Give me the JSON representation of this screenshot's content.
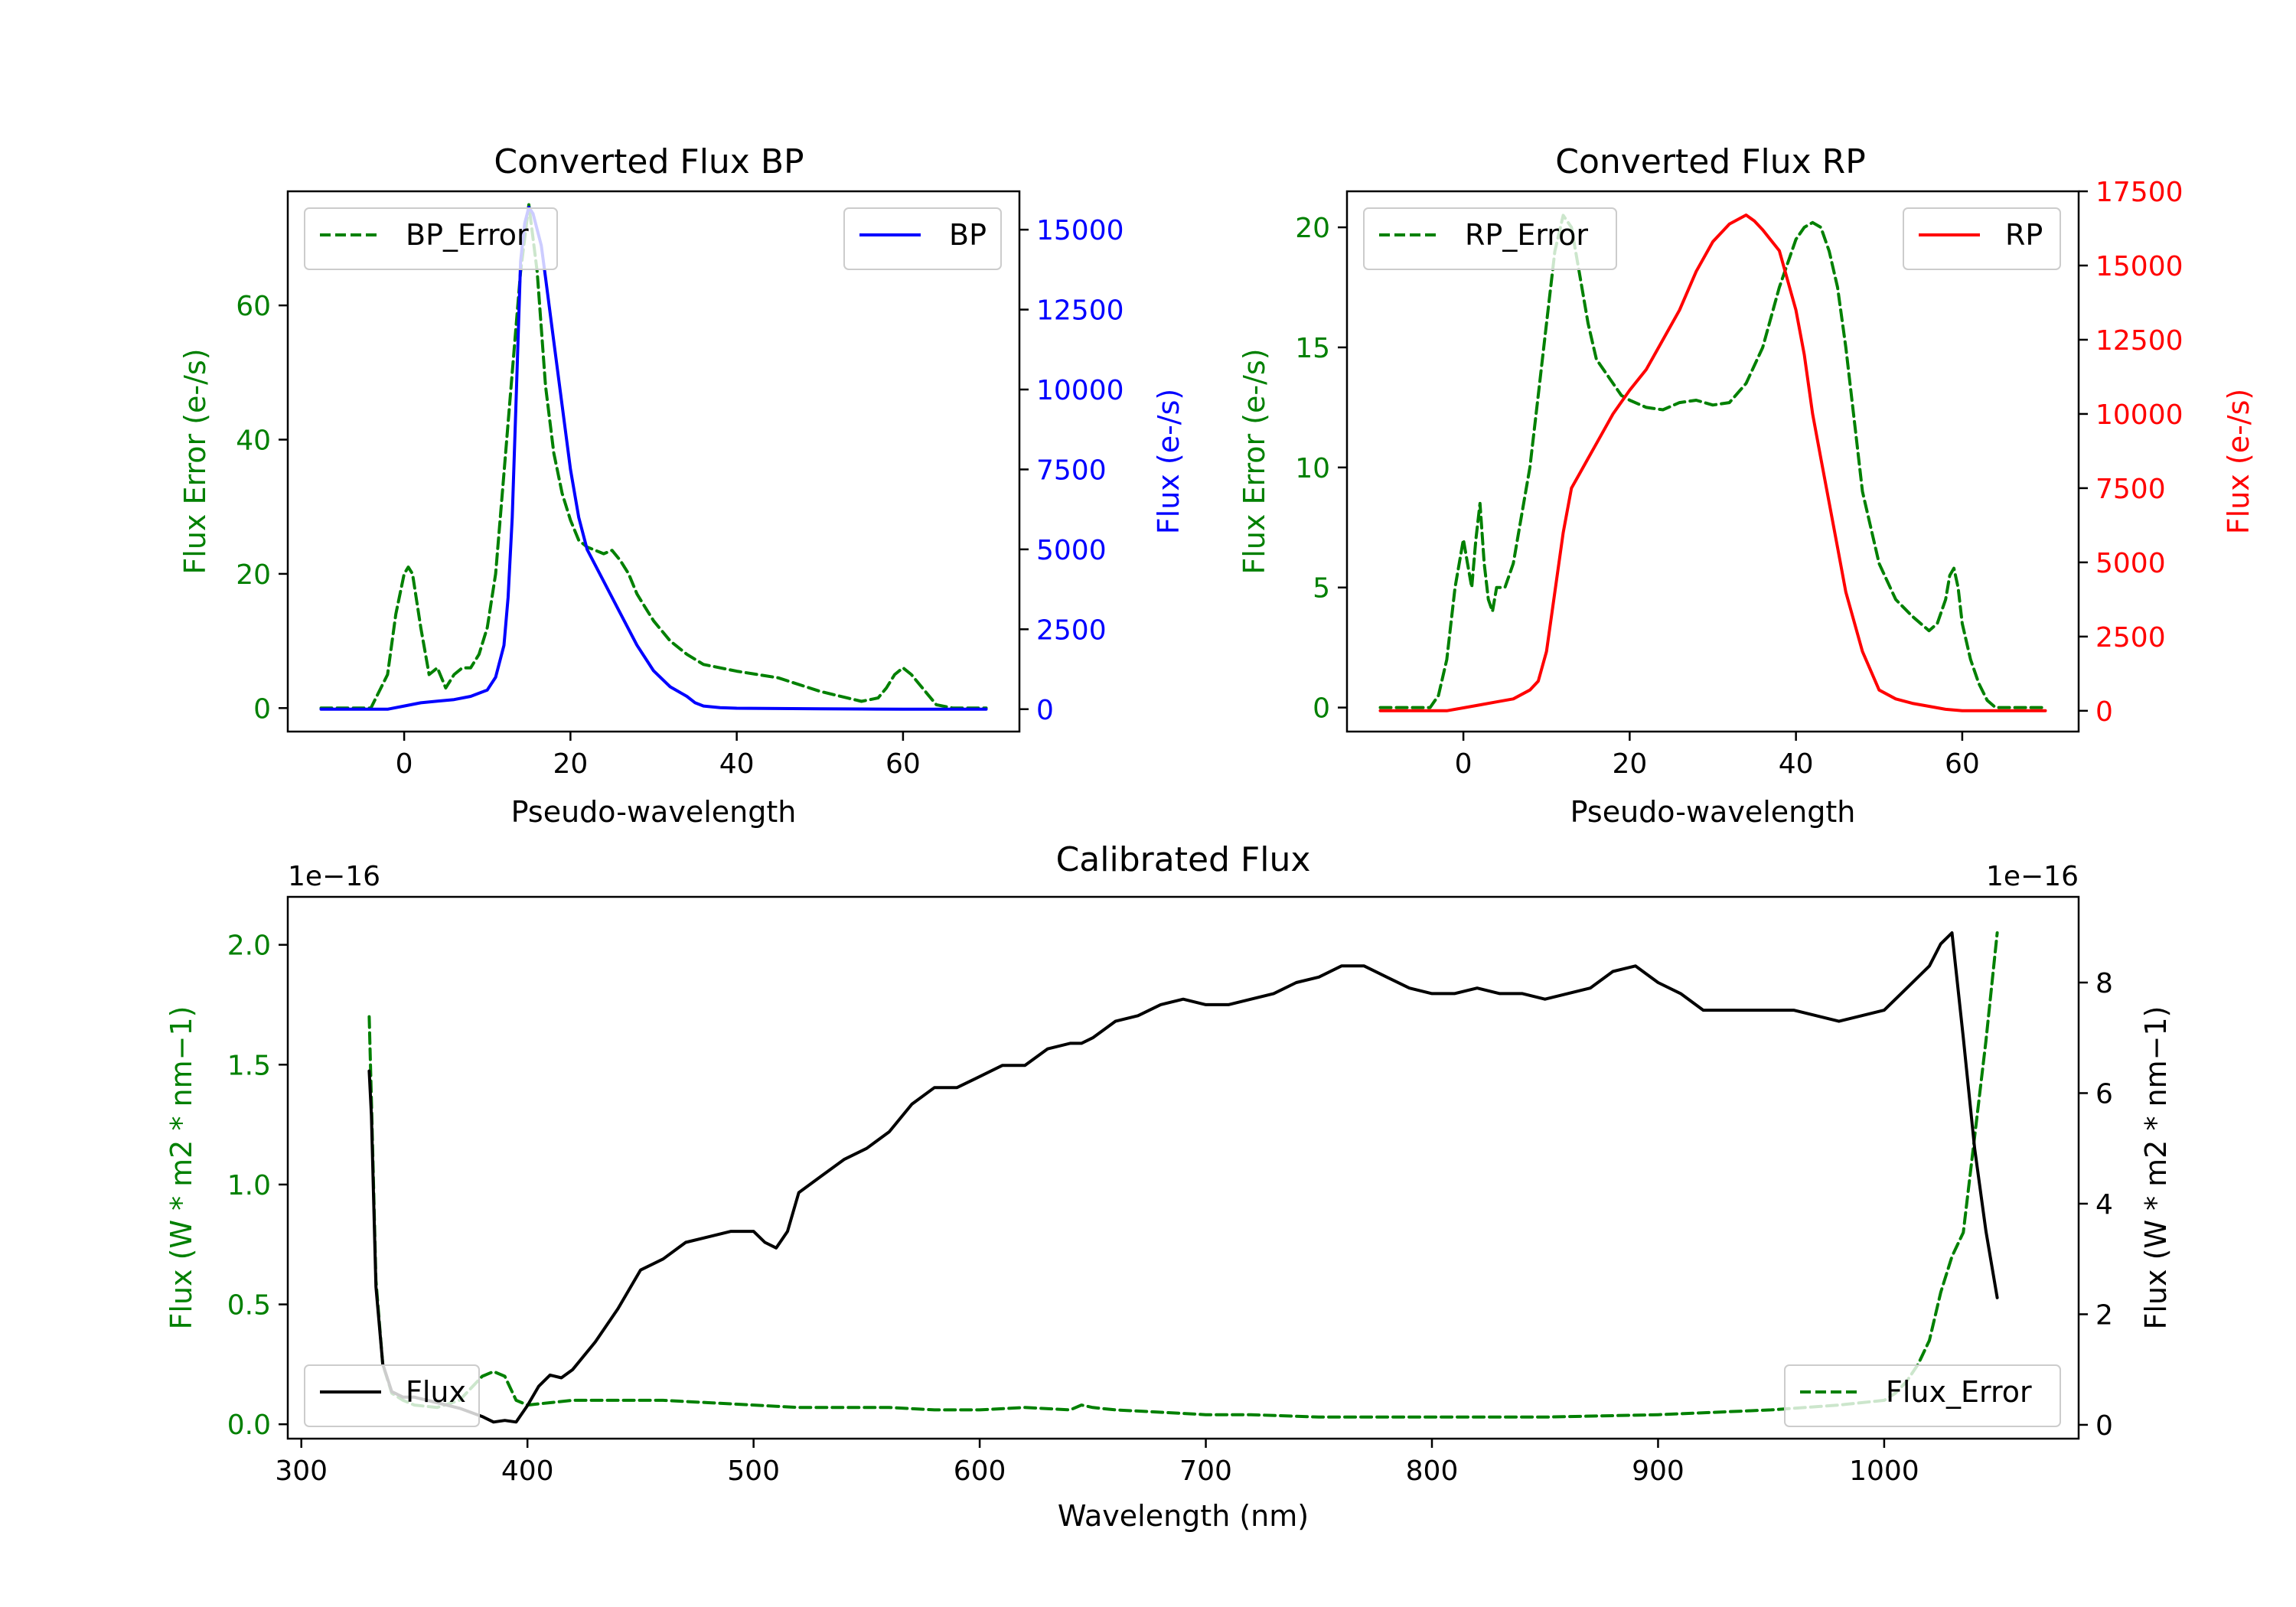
{
  "chart_data": [
    {
      "id": "bp",
      "type": "line",
      "title": "Converted Flux BP",
      "xlabel": "Pseudo-wavelength",
      "xlim": [
        -14,
        74
      ],
      "xticks": [
        0,
        20,
        40,
        60
      ],
      "left_axis": {
        "label": "Flux Error (e-/s)",
        "color": "#008000",
        "ylim": [
          -3.5,
          77
        ],
        "ticks": [
          0,
          20,
          40,
          60
        ],
        "tick_labels": [
          "0",
          "20",
          "40",
          "60"
        ]
      },
      "right_axis": {
        "label": "Flux (e-/s)",
        "color": "#0000ff",
        "ylim": [
          -700,
          16200
        ],
        "ticks": [
          0,
          2500,
          5000,
          7500,
          10000,
          12500,
          15000
        ],
        "tick_labels": [
          "0",
          "2500",
          "5000",
          "7500",
          "10000",
          "12500",
          "15000"
        ]
      },
      "series": [
        {
          "name": "BP_Error",
          "axis": "left",
          "color": "#008000",
          "style": "dashed",
          "x": [
            -10,
            -4,
            -2,
            -1,
            0,
            0.5,
            1,
            2,
            3,
            4,
            5,
            6,
            7,
            8,
            9,
            10,
            11,
            12,
            13,
            14,
            15,
            16,
            17,
            18,
            19,
            20,
            21,
            22,
            23,
            24,
            25,
            26,
            27,
            28,
            29,
            30,
            32,
            34,
            36,
            38,
            40,
            45,
            50,
            55,
            57,
            58,
            59,
            60,
            61,
            62,
            63,
            64,
            66,
            70
          ],
          "y": [
            0,
            0,
            5,
            14,
            20,
            21,
            20,
            12,
            5,
            6,
            3,
            5,
            6,
            6,
            8,
            12,
            20,
            35,
            50,
            65,
            75,
            65,
            48,
            38,
            32,
            28,
            25,
            24,
            23.5,
            23,
            23.5,
            22,
            20,
            17,
            15,
            13,
            10,
            8,
            6.5,
            6,
            5.5,
            4.5,
            2.5,
            1,
            1.5,
            3,
            5,
            6,
            5,
            3.5,
            2,
            0.5,
            0,
            0
          ]
        },
        {
          "name": "BP",
          "axis": "right",
          "color": "#0000ff",
          "style": "solid",
          "x": [
            -10,
            -2,
            0,
            2,
            4,
            6,
            8,
            10,
            11,
            12,
            12.5,
            13,
            13.5,
            14,
            14.5,
            15,
            15.5,
            16,
            16.5,
            17,
            18,
            19,
            20,
            21,
            22,
            24,
            26,
            28,
            30,
            32,
            34,
            35,
            36,
            38,
            40,
            45,
            50,
            55,
            60,
            65,
            70
          ],
          "y": [
            0,
            0,
            100,
            200,
            250,
            300,
            400,
            600,
            1000,
            2000,
            3500,
            6000,
            10000,
            14000,
            15200,
            15700,
            15500,
            15000,
            14500,
            13500,
            11500,
            9500,
            7500,
            6000,
            5000,
            4000,
            3000,
            2000,
            1200,
            700,
            400,
            200,
            100,
            50,
            30,
            20,
            10,
            5,
            0,
            0,
            0
          ]
        }
      ],
      "legend": [
        {
          "label": "BP_Error",
          "loc": "upper-left"
        },
        {
          "label": "BP",
          "loc": "upper-right"
        }
      ]
    },
    {
      "id": "rp",
      "type": "line",
      "title": "Converted Flux RP",
      "xlabel": "Pseudo-wavelength",
      "xlim": [
        -14,
        74
      ],
      "xticks": [
        0,
        20,
        40,
        60
      ],
      "left_axis": {
        "label": "Flux Error (e-/s)",
        "color": "#008000",
        "ylim": [
          -1,
          21.5
        ],
        "ticks": [
          0,
          5,
          10,
          15,
          20
        ],
        "tick_labels": [
          "0",
          "5",
          "10",
          "15",
          "20"
        ]
      },
      "right_axis": {
        "label": "Flux (e-/s)",
        "color": "#ff0000",
        "ylim": [
          -700,
          17500
        ],
        "ticks": [
          0,
          2500,
          5000,
          7500,
          10000,
          12500,
          15000,
          17500
        ],
        "tick_labels": [
          "0",
          "2500",
          "5000",
          "7500",
          "10000",
          "12500",
          "15000",
          "17500"
        ]
      },
      "series": [
        {
          "name": "RP_Error",
          "axis": "left",
          "color": "#008000",
          "style": "dashed",
          "x": [
            -10,
            -4,
            -3,
            -2,
            -1,
            0,
            0.5,
            1,
            1.5,
            2,
            2.5,
            3,
            3.5,
            4,
            5,
            6,
            7,
            8,
            9,
            10,
            11,
            12,
            13,
            14,
            15,
            16,
            17,
            18,
            19,
            20,
            22,
            24,
            26,
            28,
            30,
            32,
            34,
            36,
            38,
            40,
            41,
            42,
            43,
            44,
            45,
            46,
            47,
            48,
            50,
            52,
            54,
            55,
            56,
            57,
            58,
            58.5,
            59,
            59.5,
            60,
            61,
            62,
            63,
            64,
            65,
            70
          ],
          "y": [
            0,
            0,
            0.5,
            2,
            5,
            7,
            6,
            5,
            7,
            8.5,
            6,
            4.5,
            4,
            5,
            5,
            6,
            8,
            10,
            13,
            16,
            19,
            20.5,
            20,
            18,
            16,
            14.5,
            14,
            13.5,
            13,
            12.8,
            12.5,
            12.4,
            12.7,
            12.8,
            12.6,
            12.7,
            13.5,
            15,
            17.5,
            19.5,
            20,
            20.2,
            20,
            19,
            17.5,
            15,
            12,
            9,
            6,
            4.5,
            3.8,
            3.5,
            3.2,
            3.5,
            4.5,
            5.5,
            5.8,
            5,
            3.5,
            2,
            1,
            0.3,
            0,
            0,
            0
          ]
        },
        {
          "name": "RP",
          "axis": "right",
          "color": "#ff0000",
          "style": "solid",
          "x": [
            -10,
            -2,
            0,
            2,
            4,
            6,
            8,
            9,
            10,
            11,
            12,
            13,
            14,
            15,
            16,
            18,
            20,
            22,
            24,
            26,
            28,
            30,
            32,
            34,
            35,
            36,
            38,
            40,
            41,
            42,
            43,
            44,
            45,
            46,
            48,
            50,
            52,
            54,
            56,
            58,
            60,
            62,
            65,
            70
          ],
          "y": [
            0,
            0,
            100,
            200,
            300,
            400,
            700,
            1000,
            2000,
            4000,
            6000,
            7500,
            8000,
            8500,
            9000,
            10000,
            10800,
            11500,
            12500,
            13500,
            14800,
            15800,
            16400,
            16700,
            16500,
            16200,
            15500,
            13500,
            12000,
            10000,
            8500,
            7000,
            5500,
            4000,
            2000,
            700,
            400,
            250,
            150,
            50,
            0,
            0,
            0,
            0
          ]
        }
      ],
      "legend": [
        {
          "label": "RP_Error",
          "loc": "upper-left"
        },
        {
          "label": "RP",
          "loc": "upper-right"
        }
      ]
    },
    {
      "id": "cal",
      "type": "line",
      "title": "Calibrated Flux",
      "xlabel": "Wavelength (nm)",
      "xlim": [
        294,
        1086
      ],
      "xticks": [
        300,
        400,
        500,
        600,
        700,
        800,
        900,
        1000
      ],
      "left_axis": {
        "label": "Flux (W * m2 * nm−1)",
        "color": "#008000",
        "ylim": [
          -0.06,
          2.2
        ],
        "ticks": [
          0.0,
          0.5,
          1.0,
          1.5,
          2.0
        ],
        "tick_labels": [
          "0.0",
          "0.5",
          "1.0",
          "1.5",
          "2.0"
        ],
        "offset_text": "1e−16"
      },
      "right_axis": {
        "label": "Flux (W * m2 * nm−1)",
        "color": "#000000",
        "ylim": [
          -0.25,
          9.55
        ],
        "ticks": [
          0,
          2,
          4,
          6,
          8
        ],
        "tick_labels": [
          "0",
          "2",
          "4",
          "6",
          "8"
        ],
        "offset_text": "1e−16"
      },
      "series": [
        {
          "name": "Flux_Error",
          "axis": "left",
          "color": "#008000",
          "style": "dashed",
          "x": [
            330,
            331,
            333,
            336,
            340,
            345,
            350,
            360,
            370,
            380,
            385,
            390,
            395,
            400,
            410,
            420,
            430,
            440,
            460,
            480,
            500,
            520,
            540,
            560,
            580,
            600,
            620,
            640,
            645,
            650,
            660,
            680,
            700,
            720,
            750,
            800,
            850,
            900,
            950,
            980,
            1000,
            1005,
            1010,
            1015,
            1020,
            1025,
            1030,
            1035,
            1040,
            1045,
            1050
          ],
          "y": [
            1.7,
            1.35,
            0.6,
            0.25,
            0.13,
            0.1,
            0.08,
            0.07,
            0.1,
            0.2,
            0.22,
            0.2,
            0.1,
            0.08,
            0.09,
            0.1,
            0.1,
            0.1,
            0.1,
            0.09,
            0.08,
            0.07,
            0.07,
            0.07,
            0.06,
            0.06,
            0.07,
            0.06,
            0.08,
            0.07,
            0.06,
            0.05,
            0.04,
            0.04,
            0.03,
            0.03,
            0.03,
            0.04,
            0.06,
            0.08,
            0.1,
            0.13,
            0.18,
            0.25,
            0.35,
            0.55,
            0.7,
            0.8,
            1.2,
            1.6,
            2.05
          ]
        },
        {
          "name": "Flux",
          "axis": "right",
          "color": "#000000",
          "style": "solid",
          "x": [
            330,
            331,
            333,
            336,
            340,
            345,
            350,
            360,
            370,
            380,
            385,
            390,
            395,
            400,
            405,
            410,
            415,
            420,
            430,
            440,
            450,
            460,
            470,
            480,
            490,
            500,
            505,
            510,
            515,
            520,
            530,
            540,
            550,
            560,
            570,
            580,
            590,
            600,
            610,
            620,
            630,
            640,
            645,
            650,
            660,
            670,
            680,
            690,
            700,
            710,
            720,
            730,
            740,
            750,
            760,
            770,
            780,
            790,
            800,
            810,
            820,
            830,
            840,
            850,
            860,
            870,
            880,
            890,
            900,
            910,
            920,
            930,
            940,
            950,
            960,
            970,
            980,
            990,
            1000,
            1010,
            1020,
            1025,
            1030,
            1035,
            1040,
            1045,
            1050
          ],
          "y": [
            6.4,
            5.6,
            2.5,
            1.1,
            0.6,
            0.5,
            0.5,
            0.4,
            0.3,
            0.15,
            0.05,
            0.08,
            0.05,
            0.35,
            0.7,
            0.9,
            0.85,
            1.0,
            1.5,
            2.1,
            2.8,
            3.0,
            3.3,
            3.4,
            3.5,
            3.5,
            3.3,
            3.2,
            3.5,
            4.2,
            4.5,
            4.8,
            5.0,
            5.3,
            5.8,
            6.1,
            6.1,
            6.3,
            6.5,
            6.5,
            6.8,
            6.9,
            6.9,
            7.0,
            7.3,
            7.4,
            7.6,
            7.7,
            7.6,
            7.6,
            7.7,
            7.8,
            8.0,
            8.1,
            8.3,
            8.3,
            8.1,
            7.9,
            7.8,
            7.8,
            7.9,
            7.8,
            7.8,
            7.7,
            7.8,
            7.9,
            8.2,
            8.3,
            8.0,
            7.8,
            7.5,
            7.5,
            7.5,
            7.5,
            7.5,
            7.4,
            7.3,
            7.4,
            7.5,
            7.9,
            8.3,
            8.7,
            8.9,
            7.0,
            5.0,
            3.5,
            2.3
          ]
        }
      ],
      "legend": [
        {
          "label": "Flux",
          "loc": "lower-left"
        },
        {
          "label": "Flux_Error",
          "loc": "lower-right"
        }
      ]
    }
  ]
}
